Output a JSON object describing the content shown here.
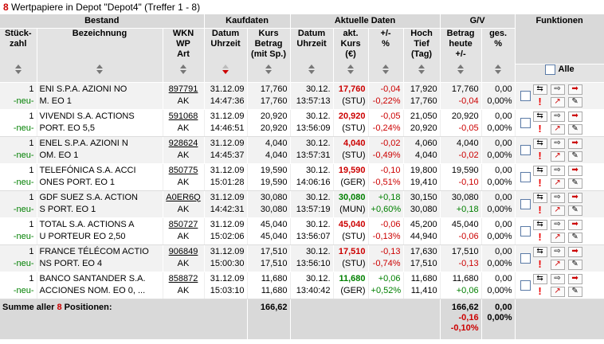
{
  "header": {
    "count": "8",
    "title_text": "Wertpapiere in Depot \"Depot4\" (Treffer 1 - 8)"
  },
  "groups": {
    "bestand": "Bestand",
    "kaufdaten": "Kaufdaten",
    "aktuelle": "Aktuelle Daten",
    "gv": "G/V",
    "funktionen": "Funktionen"
  },
  "columns": {
    "stueck": "Stück-\nzahl",
    "bezeichnung": "Bezeichnung",
    "wkn": "WKN\nWP\nArt",
    "kauf_datum": "Datum\nUhrzeit",
    "kauf_kurs": "Kurs\nBetrag\n(mit Sp.)",
    "akt_datum": "Datum\nUhrzeit",
    "akt_kurs": "akt.\nKurs\n(€)",
    "diff": "+/-\n%",
    "hoch": "Hoch\nTief\n(Tag)",
    "betrag": "Betrag\nheute\n+/-",
    "ges": "ges.\n%"
  },
  "alle_label": "Alle",
  "rows": [
    {
      "qty": "1",
      "neu": "-neu-",
      "name": "ENI S.P.A. AZIONI NO\nM. EO 1",
      "wkn": "897791",
      "art": "AK",
      "kdate": "31.12.09",
      "ktime": "14:47:36",
      "kkurs": "17,760",
      "kbetrag": "17,760",
      "adate": "30.12.",
      "atime": "13:57:13",
      "akurs": "17,760",
      "akurs_color": "red",
      "boerse": "(STU)",
      "diff": "-0,04",
      "diffpct": "-0,22%",
      "diff_color": "red",
      "hoch": "17,920",
      "tief": "17,760",
      "betrag": "17,760",
      "gv": "-0,04",
      "gv_color": "red",
      "ges": "0,00",
      "gespct": "0,00%"
    },
    {
      "qty": "1",
      "neu": "-neu-",
      "name": "VIVENDI S.A. ACTIONS\nPORT. EO 5,5",
      "wkn": "591068",
      "art": "AK",
      "kdate": "31.12.09",
      "ktime": "14:46:51",
      "kkurs": "20,920",
      "kbetrag": "20,920",
      "adate": "30.12.",
      "atime": "13:56:09",
      "akurs": "20,920",
      "akurs_color": "red",
      "boerse": "(STU)",
      "diff": "-0,05",
      "diffpct": "-0,24%",
      "diff_color": "red",
      "hoch": "21,050",
      "tief": "20,920",
      "betrag": "20,920",
      "gv": "-0,05",
      "gv_color": "red",
      "ges": "0,00",
      "gespct": "0,00%"
    },
    {
      "qty": "1",
      "neu": "-neu-",
      "name": "ENEL S.P.A. AZIONI N\nOM. EO 1",
      "wkn": "928624",
      "art": "AK",
      "kdate": "31.12.09",
      "ktime": "14:45:37",
      "kkurs": "4,040",
      "kbetrag": "4,040",
      "adate": "30.12.",
      "atime": "13:57:31",
      "akurs": "4,040",
      "akurs_color": "red",
      "boerse": "(STU)",
      "diff": "-0,02",
      "diffpct": "-0,49%",
      "diff_color": "red",
      "hoch": "4,060",
      "tief": "4,040",
      "betrag": "4,040",
      "gv": "-0,02",
      "gv_color": "red",
      "ges": "0,00",
      "gespct": "0,00%"
    },
    {
      "qty": "1",
      "neu": "-neu-",
      "name": "TELEFÓNICA S.A. ACCI\nONES PORT. EO 1",
      "wkn": "850775",
      "art": "AK",
      "kdate": "31.12.09",
      "ktime": "15:01:28",
      "kkurs": "19,590",
      "kbetrag": "19,590",
      "adate": "30.12.",
      "atime": "14:06:16",
      "akurs": "19,590",
      "akurs_color": "red",
      "boerse": "(GER)",
      "diff": "-0,10",
      "diffpct": "-0,51%",
      "diff_color": "red",
      "hoch": "19,800",
      "tief": "19,410",
      "betrag": "19,590",
      "gv": "-0,10",
      "gv_color": "red",
      "ges": "0,00",
      "gespct": "0,00%"
    },
    {
      "qty": "1",
      "neu": "-neu-",
      "name": "GDF SUEZ S.A. ACTION\nS PORT. EO 1",
      "wkn": "A0ER6Q",
      "art": "AK",
      "kdate": "31.12.09",
      "ktime": "14:42:31",
      "kkurs": "30,080",
      "kbetrag": "30,080",
      "adate": "30.12.",
      "atime": "13:57:19",
      "akurs": "30,080",
      "akurs_color": "green",
      "boerse": "(MUN)",
      "diff": "+0,18",
      "diffpct": "+0,60%",
      "diff_color": "green",
      "hoch": "30,150",
      "tief": "30,080",
      "betrag": "30,080",
      "gv": "+0,18",
      "gv_color": "green",
      "ges": "0,00",
      "gespct": "0,00%"
    },
    {
      "qty": "1",
      "neu": "-neu-",
      "name": "TOTAL S.A. ACTIONS A\nU PORTEUR EO 2,50",
      "wkn": "850727",
      "art": "AK",
      "kdate": "31.12.09",
      "ktime": "15:02:06",
      "kkurs": "45,040",
      "kbetrag": "45,040",
      "adate": "30.12.",
      "atime": "13:56:07",
      "akurs": "45,040",
      "akurs_color": "red",
      "boerse": "(STU)",
      "diff": "-0,06",
      "diffpct": "-0,13%",
      "diff_color": "red",
      "hoch": "45,200",
      "tief": "44,940",
      "betrag": "45,040",
      "gv": "-0,06",
      "gv_color": "red",
      "ges": "0,00",
      "gespct": "0,00%"
    },
    {
      "qty": "1",
      "neu": "-neu-",
      "name": "FRANCE TÉLÉCOM ACTIO\nNS PORT. EO 4",
      "wkn": "906849",
      "art": "AK",
      "kdate": "31.12.09",
      "ktime": "15:00:30",
      "kkurs": "17,510",
      "kbetrag": "17,510",
      "adate": "30.12.",
      "atime": "13:56:10",
      "akurs": "17,510",
      "akurs_color": "red",
      "boerse": "(STU)",
      "diff": "-0,13",
      "diffpct": "-0,74%",
      "diff_color": "red",
      "hoch": "17,630",
      "tief": "17,510",
      "betrag": "17,510",
      "gv": "-0,13",
      "gv_color": "red",
      "ges": "0,00",
      "gespct": "0,00%"
    },
    {
      "qty": "1",
      "neu": "-neu-",
      "name": "BANCO SANTANDER S.A.\nACCIONES NOM. EO 0, ...",
      "wkn": "858872",
      "art": "AK",
      "kdate": "31.12.09",
      "ktime": "15:03:10",
      "kkurs": "11,680",
      "kbetrag": "11,680",
      "adate": "30.12.",
      "atime": "13:40:42",
      "akurs": "11,680",
      "akurs_color": "green",
      "boerse": "(GER)",
      "diff": "+0,06",
      "diffpct": "+0,52%",
      "diff_color": "green",
      "hoch": "11,680",
      "tief": "11,410",
      "betrag": "11,680",
      "gv": "+0,06",
      "gv_color": "green",
      "ges": "0,00",
      "gespct": "0,00%"
    }
  ],
  "summary": {
    "label_prefix": "Summe aller",
    "count": "8",
    "label_suffix": "Positionen:",
    "kauf_total": "166,62",
    "betrag_total": "166,62",
    "gv_total": "-0,16",
    "gv_pct": "-0,10%",
    "ges_total": "0,00",
    "ges_pct": "0,00%"
  },
  "colors": {
    "red": "#cc0000",
    "green": "#008000"
  }
}
